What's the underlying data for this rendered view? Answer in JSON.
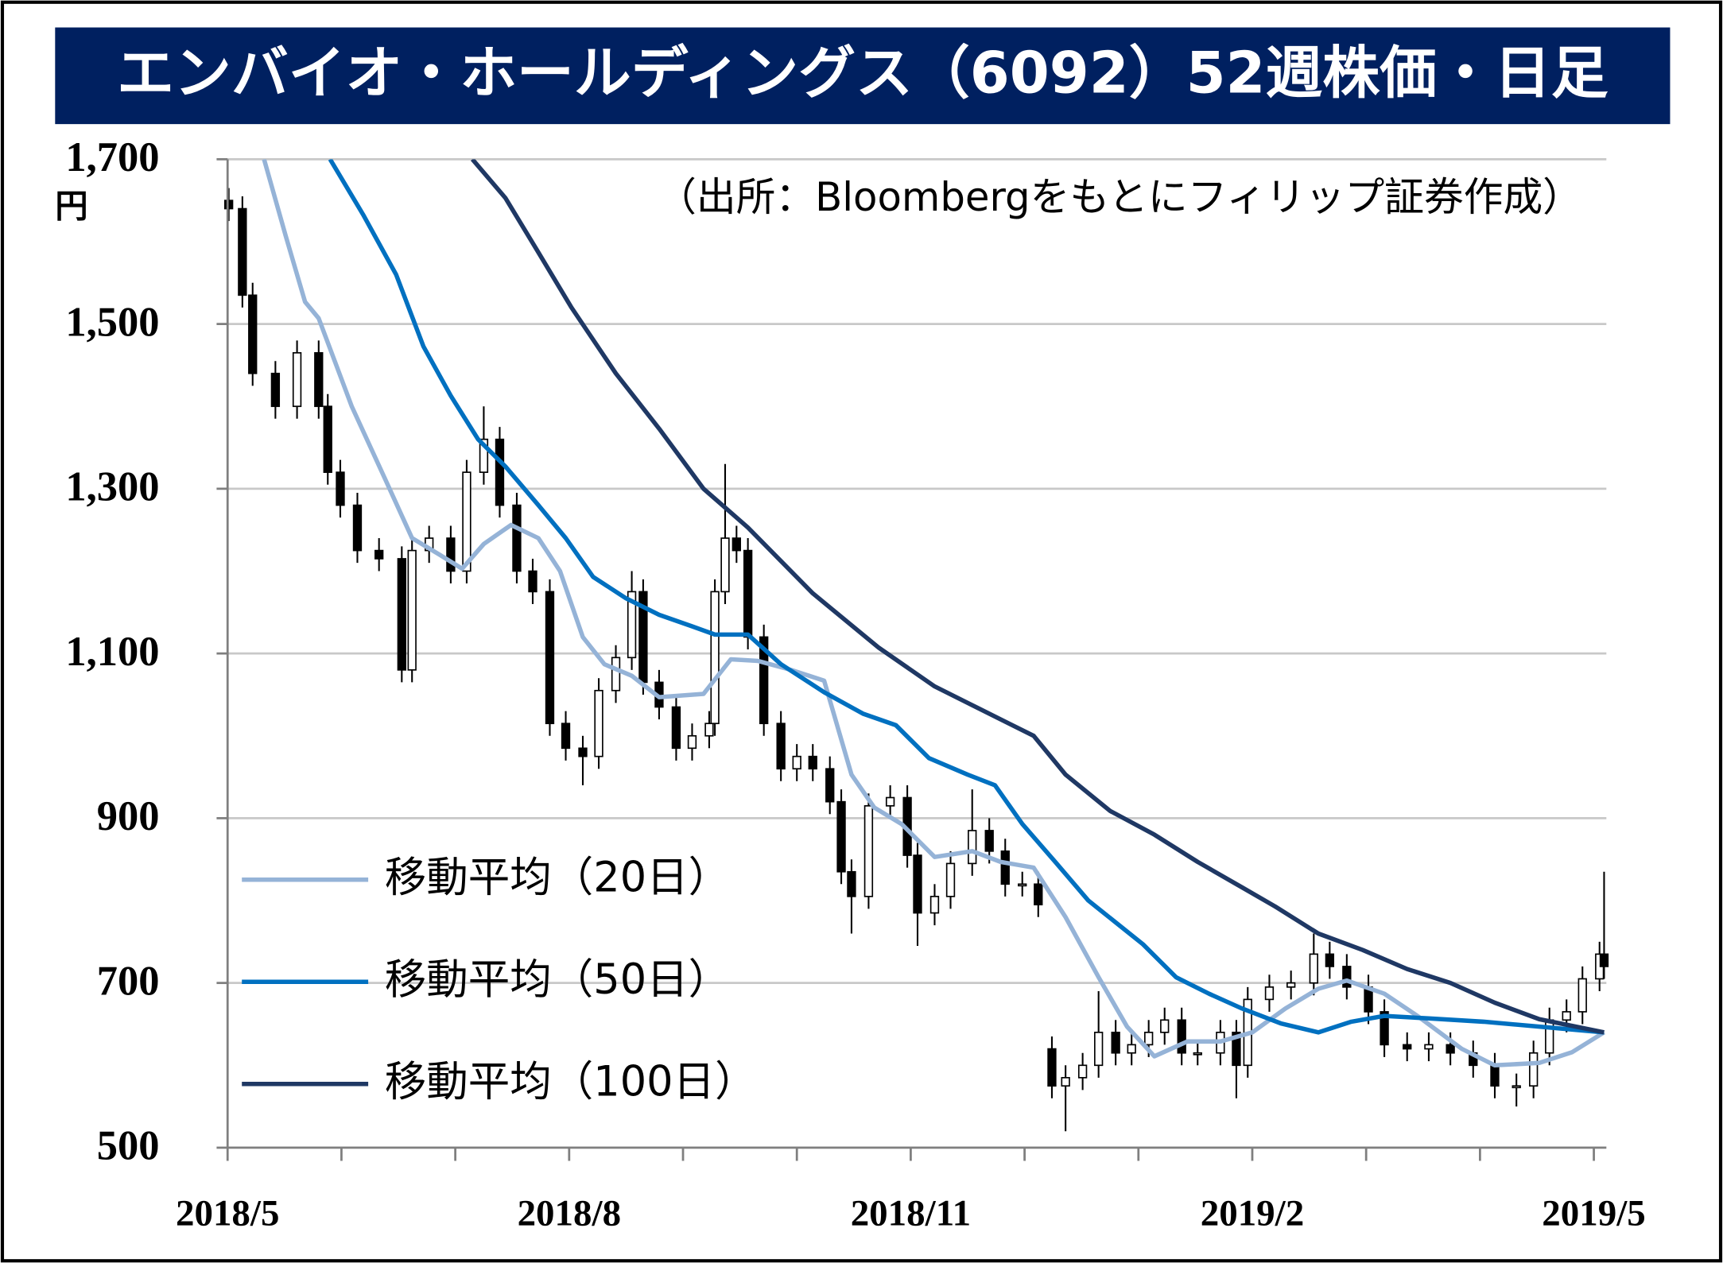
{
  "chart_data": {
    "type": "candlestick",
    "title": "エンバイオ・ホールディングス（6092）52週株価・日足",
    "source_note": "（出所：Bloombergをもとにフィリップ証券作成）",
    "y_unit": "円",
    "xlim": [
      0,
      12.11
    ],
    "xticks": [
      {
        "value": 0,
        "label": "2018/5"
      },
      {
        "value": 3,
        "label": "2018/8"
      },
      {
        "value": 6,
        "label": "2018/11"
      },
      {
        "value": 9,
        "label": "2019/2"
      },
      {
        "value": 12,
        "label": "2019/5"
      }
    ],
    "minor_xticks": [
      1,
      2,
      4,
      5,
      7,
      8,
      10,
      11
    ],
    "ylim": [
      500,
      1700
    ],
    "yticks": [
      {
        "value": 500,
        "label": "500"
      },
      {
        "value": 700,
        "label": "700"
      },
      {
        "value": 900,
        "label": "900"
      },
      {
        "value": 1100,
        "label": "1,100"
      },
      {
        "value": 1300,
        "label": "1,300"
      },
      {
        "value": 1500,
        "label": "1,500"
      },
      {
        "value": 1700,
        "label": "1,700"
      }
    ],
    "grid": true,
    "candle_color": "#000000",
    "legend_position": "lower left",
    "x": [
      0.01,
      0.13,
      0.22,
      0.42,
      0.61,
      0.8,
      0.88,
      0.99,
      1.14,
      1.33,
      1.53,
      1.62,
      1.77,
      1.96,
      2.1,
      2.25,
      2.39,
      2.54,
      2.68,
      2.83,
      2.97,
      3.12,
      3.26,
      3.41,
      3.55,
      3.65,
      3.79,
      3.94,
      4.08,
      4.23,
      4.28,
      4.37,
      4.47,
      4.57,
      4.71,
      4.86,
      5.0,
      5.14,
      5.29,
      5.39,
      5.48,
      5.63,
      5.82,
      5.97,
      6.06,
      6.21,
      6.35,
      6.54,
      6.69,
      6.83,
      6.98,
      7.12,
      7.24,
      7.36,
      7.51,
      7.65,
      7.8,
      7.94,
      8.09,
      8.23,
      8.38,
      8.52,
      8.72,
      8.86,
      8.96,
      9.15,
      9.34,
      9.54,
      9.68,
      9.83,
      10.02,
      10.16,
      10.36,
      10.55,
      10.74,
      10.94,
      11.13,
      11.32,
      11.47,
      11.61,
      11.76,
      11.9,
      12.05,
      12.09
    ],
    "open": [
      1650,
      1640,
      1535,
      1440,
      1400,
      1465,
      1400,
      1320,
      1280,
      1225,
      1215,
      1080,
      1225,
      1240,
      1200,
      1320,
      1360,
      1280,
      1200,
      1175,
      1015,
      985,
      975,
      1055,
      1095,
      1175,
      1065,
      1035,
      985,
      1000,
      1015,
      1175,
      1240,
      1225,
      1120,
      1015,
      960,
      975,
      960,
      920,
      835,
      805,
      915,
      925,
      855,
      785,
      805,
      845,
      885,
      860,
      820,
      820,
      620,
      575,
      585,
      600,
      640,
      615,
      625,
      640,
      655,
      615,
      615,
      640,
      600,
      680,
      695,
      700,
      735,
      720,
      695,
      665,
      625,
      620,
      625,
      615,
      600,
      575,
      575,
      615,
      655,
      665,
      705,
      735
    ],
    "high": [
      1665,
      1655,
      1550,
      1455,
      1480,
      1480,
      1415,
      1335,
      1295,
      1240,
      1230,
      1240,
      1255,
      1255,
      1335,
      1400,
      1375,
      1295,
      1215,
      1190,
      1030,
      1000,
      1070,
      1110,
      1200,
      1190,
      1080,
      1050,
      1015,
      1030,
      1190,
      1330,
      1255,
      1240,
      1135,
      1030,
      990,
      990,
      975,
      935,
      850,
      930,
      940,
      940,
      870,
      820,
      860,
      935,
      900,
      875,
      835,
      835,
      635,
      600,
      615,
      690,
      655,
      640,
      655,
      670,
      670,
      630,
      655,
      655,
      695,
      710,
      715,
      760,
      750,
      735,
      710,
      680,
      640,
      640,
      640,
      630,
      615,
      590,
      630,
      670,
      680,
      720,
      750,
      835
    ],
    "low": [
      1625,
      1520,
      1425,
      1385,
      1385,
      1385,
      1305,
      1265,
      1210,
      1200,
      1065,
      1065,
      1210,
      1185,
      1185,
      1305,
      1265,
      1185,
      1160,
      1000,
      970,
      940,
      960,
      1040,
      1080,
      1050,
      1020,
      970,
      970,
      985,
      1000,
      1160,
      1210,
      1105,
      1000,
      945,
      945,
      945,
      905,
      820,
      760,
      790,
      900,
      840,
      745,
      770,
      790,
      830,
      845,
      805,
      805,
      780,
      560,
      520,
      570,
      585,
      600,
      600,
      610,
      625,
      600,
      600,
      600,
      560,
      585,
      665,
      680,
      685,
      705,
      680,
      650,
      610,
      605,
      605,
      600,
      585,
      560,
      550,
      560,
      600,
      640,
      650,
      690,
      705
    ],
    "close": [
      1640,
      1535,
      1440,
      1400,
      1465,
      1400,
      1320,
      1280,
      1225,
      1215,
      1080,
      1225,
      1240,
      1200,
      1320,
      1360,
      1280,
      1200,
      1175,
      1015,
      985,
      975,
      1055,
      1095,
      1175,
      1065,
      1035,
      985,
      1000,
      1015,
      1175,
      1240,
      1225,
      1120,
      1015,
      960,
      975,
      960,
      920,
      835,
      805,
      915,
      925,
      855,
      785,
      805,
      845,
      885,
      860,
      820,
      820,
      795,
      575,
      585,
      600,
      640,
      615,
      625,
      640,
      655,
      615,
      615,
      640,
      600,
      680,
      695,
      700,
      735,
      720,
      695,
      665,
      625,
      620,
      625,
      615,
      600,
      575,
      575,
      615,
      655,
      665,
      705,
      735,
      720
    ],
    "moving_averages": [
      {
        "name": "移動平均（20日）",
        "color": "#95b3d7",
        "x": [
          0.32,
          0.51,
          0.68,
          0.8,
          1.09,
          1.38,
          1.62,
          1.86,
          2.06,
          2.25,
          2.49,
          2.73,
          2.92,
          3.12,
          3.31,
          3.55,
          3.79,
          4.18,
          4.42,
          4.66,
          4.95,
          5.24,
          5.48,
          5.68,
          5.92,
          6.21,
          6.54,
          6.79,
          7.08,
          7.36,
          7.65,
          7.9,
          8.14,
          8.43,
          8.72,
          9.0,
          9.29,
          9.58,
          9.83,
          10.16,
          10.45,
          10.84,
          11.13,
          11.52,
          11.81,
          12.09
        ],
        "values": [
          1700,
          1607,
          1527,
          1507,
          1400,
          1313,
          1240,
          1220,
          1203,
          1233,
          1256,
          1240,
          1200,
          1120,
          1087,
          1073,
          1047,
          1051,
          1093,
          1091,
          1080,
          1067,
          953,
          913,
          893,
          853,
          860,
          847,
          840,
          780,
          707,
          647,
          611,
          629,
          629,
          640,
          669,
          693,
          703,
          687,
          660,
          620,
          600,
          603,
          616,
          640
        ]
      },
      {
        "name": "移動平均（50日）",
        "color": "#0070c0",
        "x": [
          0.9,
          1.19,
          1.48,
          1.72,
          1.96,
          2.2,
          2.44,
          2.73,
          2.97,
          3.21,
          3.5,
          3.79,
          4.08,
          4.28,
          4.57,
          4.86,
          5.24,
          5.58,
          5.87,
          6.16,
          6.5,
          6.74,
          6.98,
          7.27,
          7.56,
          8.04,
          8.33,
          8.62,
          8.91,
          9.25,
          9.58,
          9.87,
          10.16,
          10.55,
          11.03,
          11.52,
          12.09
        ],
        "values": [
          1700,
          1633,
          1560,
          1473,
          1413,
          1360,
          1327,
          1280,
          1240,
          1193,
          1167,
          1147,
          1133,
          1123,
          1123,
          1087,
          1053,
          1027,
          1013,
          973,
          953,
          940,
          893,
          847,
          800,
          747,
          707,
          687,
          669,
          651,
          640,
          653,
          660,
          657,
          653,
          647,
          640
        ]
      },
      {
        "name": "移動平均（100日）",
        "color": "#1f3864",
        "x": [
          2.15,
          2.44,
          2.73,
          3.02,
          3.41,
          3.79,
          4.18,
          4.57,
          5.14,
          5.72,
          6.21,
          6.5,
          7.08,
          7.36,
          7.75,
          8.14,
          8.52,
          8.91,
          9.2,
          9.58,
          9.97,
          10.36,
          10.74,
          11.13,
          11.52,
          12.09
        ],
        "values": [
          1700,
          1653,
          1587,
          1520,
          1440,
          1373,
          1300,
          1253,
          1173,
          1107,
          1060,
          1040,
          1000,
          953,
          909,
          880,
          847,
          816,
          793,
          760,
          740,
          717,
          700,
          676,
          656,
          640
        ]
      }
    ]
  }
}
